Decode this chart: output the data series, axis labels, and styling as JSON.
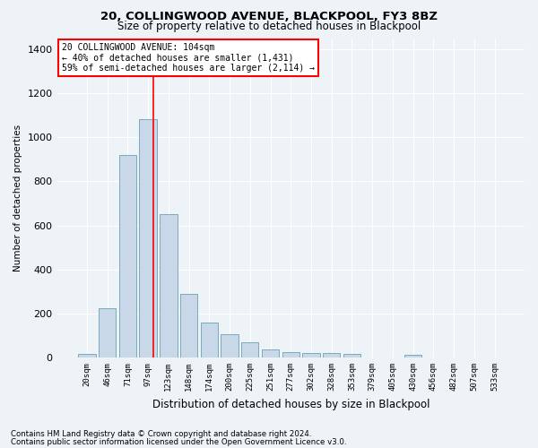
{
  "title": "20, COLLINGWOOD AVENUE, BLACKPOOL, FY3 8BZ",
  "subtitle": "Size of property relative to detached houses in Blackpool",
  "xlabel": "Distribution of detached houses by size in Blackpool",
  "ylabel": "Number of detached properties",
  "bar_color": "#c8d8e8",
  "bar_edge_color": "#7aaabb",
  "categories": [
    "20sqm",
    "46sqm",
    "71sqm",
    "97sqm",
    "123sqm",
    "148sqm",
    "174sqm",
    "200sqm",
    "225sqm",
    "251sqm",
    "277sqm",
    "302sqm",
    "328sqm",
    "353sqm",
    "379sqm",
    "405sqm",
    "430sqm",
    "456sqm",
    "482sqm",
    "507sqm",
    "533sqm"
  ],
  "values": [
    18,
    225,
    920,
    1080,
    650,
    290,
    160,
    105,
    70,
    38,
    25,
    22,
    20,
    15,
    0,
    0,
    14,
    0,
    0,
    0,
    0
  ],
  "ylim": [
    0,
    1450
  ],
  "yticks": [
    0,
    200,
    400,
    600,
    800,
    1000,
    1200,
    1400
  ],
  "annotation_box_text": "20 COLLINGWOOD AVENUE: 104sqm\n← 40% of detached houses are smaller (1,431)\n59% of semi-detached houses are larger (2,114) →",
  "footer_line1": "Contains HM Land Registry data © Crown copyright and database right 2024.",
  "footer_line2": "Contains public sector information licensed under the Open Government Licence v3.0.",
  "background_color": "#eef3f8",
  "grid_color": "#ffffff",
  "fig_width": 6.0,
  "fig_height": 5.0
}
